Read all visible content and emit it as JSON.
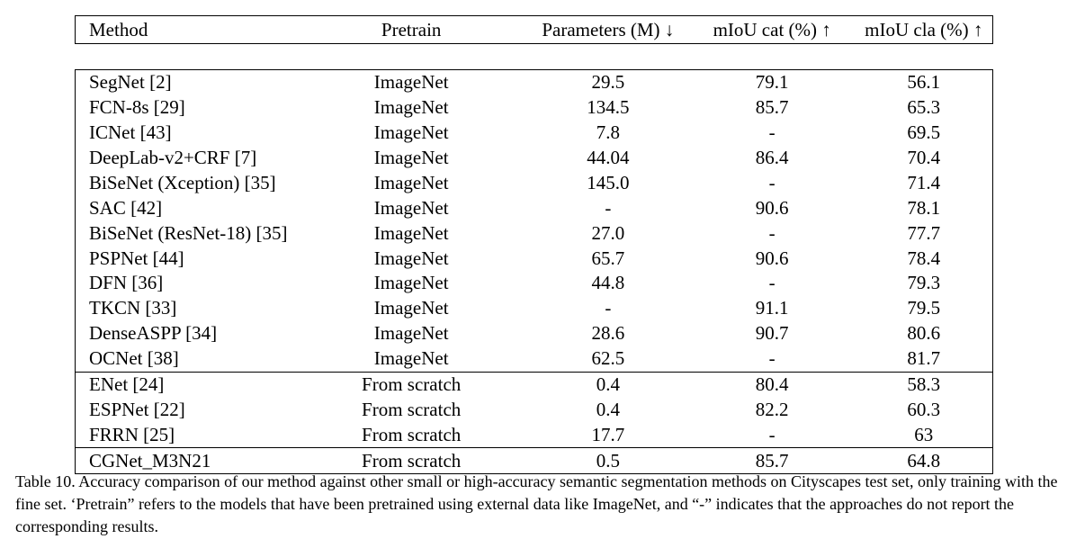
{
  "table": {
    "headers": {
      "method": "Method",
      "pretrain": "Pretrain",
      "params": "Parameters (M) ↓",
      "miou_cat": "mIoU cat (%) ↑",
      "miou_cla": "mIoU cla (%) ↑"
    },
    "groups": [
      {
        "rows": [
          {
            "method": "SegNet [2]",
            "pretrain": "ImageNet",
            "params": "29.5",
            "miou_cat": "79.1",
            "miou_cla": "56.1"
          },
          {
            "method": "FCN-8s [29]",
            "pretrain": "ImageNet",
            "params": "134.5",
            "miou_cat": "85.7",
            "miou_cla": "65.3"
          },
          {
            "method": "ICNet [43]",
            "pretrain": "ImageNet",
            "params": "7.8",
            "miou_cat": "-",
            "miou_cla": "69.5"
          },
          {
            "method": "DeepLab-v2+CRF [7]",
            "pretrain": "ImageNet",
            "params": "44.04",
            "miou_cat": "86.4",
            "miou_cla": "70.4"
          },
          {
            "method": "BiSeNet (Xception) [35]",
            "pretrain": "ImageNet",
            "params": "145.0",
            "miou_cat": "-",
            "miou_cla": "71.4"
          },
          {
            "method": "SAC [42]",
            "pretrain": "ImageNet",
            "params": "-",
            "miou_cat": "90.6",
            "miou_cla": "78.1"
          },
          {
            "method": "BiSeNet (ResNet-18) [35]",
            "pretrain": "ImageNet",
            "params": "27.0",
            "miou_cat": "-",
            "miou_cla": "77.7"
          },
          {
            "method": "PSPNet [44]",
            "pretrain": "ImageNet",
            "params": "65.7",
            "miou_cat": "90.6",
            "miou_cla": "78.4"
          },
          {
            "method": "DFN [36]",
            "pretrain": "ImageNet",
            "params": "44.8",
            "miou_cat": "-",
            "miou_cla": "79.3"
          },
          {
            "method": "TKCN [33]",
            "pretrain": "ImageNet",
            "params": "-",
            "miou_cat": "91.1",
            "miou_cla": "79.5"
          },
          {
            "method": "DenseASPP [34]",
            "pretrain": "ImageNet",
            "params": "28.6",
            "miou_cat": "90.7",
            "miou_cla": "80.6"
          },
          {
            "method": "OCNet [38]",
            "pretrain": "ImageNet",
            "params": "62.5",
            "miou_cat": "-",
            "miou_cla": "81.7"
          }
        ]
      },
      {
        "rows": [
          {
            "method": "ENet [24]",
            "pretrain": "From scratch",
            "params": "0.4",
            "miou_cat": "80.4",
            "miou_cla": "58.3"
          },
          {
            "method": "ESPNet [22]",
            "pretrain": "From scratch",
            "params": "0.4",
            "miou_cat": "82.2",
            "miou_cla": "60.3"
          },
          {
            "method": "FRRN [25]",
            "pretrain": "From scratch",
            "params": "17.7",
            "miou_cat": "-",
            "miou_cla": "63"
          }
        ]
      },
      {
        "rows": [
          {
            "method": "CGNet_M3N21",
            "pretrain": "From scratch",
            "params": "0.5",
            "miou_cat": "85.7",
            "miou_cla": "64.8"
          }
        ]
      }
    ]
  },
  "caption": "Table 10. Accuracy comparison of our method against other small or high-accuracy semantic segmentation methods on Cityscapes test set, only training with the fine set. ‘Pretrain” refers to the models that have been pretrained using external data like ImageNet, and “-” indicates that the approaches do not report the corresponding results."
}
